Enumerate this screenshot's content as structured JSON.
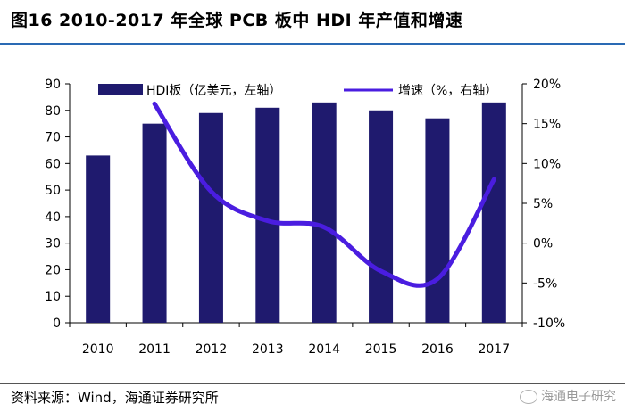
{
  "figure": {
    "title": "图16  2010-2017 年全球 PCB 板中 HDI 年产值和增速",
    "source": "资料来源：Wind，海通证券研究所",
    "watermark": "海通电子研究"
  },
  "chart_data": {
    "type": "bar",
    "categories": [
      "2010",
      "2011",
      "2012",
      "2013",
      "2014",
      "2015",
      "2016",
      "2017"
    ],
    "series": [
      {
        "name": "HDI板（亿美元，左轴）",
        "type": "bar",
        "axis": "left",
        "color": "#1f1a6e",
        "values": [
          63,
          75,
          79,
          81,
          83,
          80,
          77,
          83
        ]
      },
      {
        "name": "增速（%，右轴）",
        "type": "line",
        "axis": "right",
        "color": "#4a1de0",
        "values": [
          null,
          17.5,
          6.5,
          2.8,
          2.0,
          -3.5,
          -4.5,
          8.0
        ]
      }
    ],
    "y_left": {
      "min": 0,
      "max": 90,
      "ticks": [
        "0",
        "10",
        "20",
        "30",
        "40",
        "50",
        "60",
        "70",
        "80",
        "90"
      ]
    },
    "y_right": {
      "min": -10,
      "max": 20,
      "ticks": [
        "-10%",
        "-5%",
        "0%",
        "5%",
        "10%",
        "15%",
        "20%"
      ]
    },
    "grid": false,
    "legend_position": "top"
  }
}
